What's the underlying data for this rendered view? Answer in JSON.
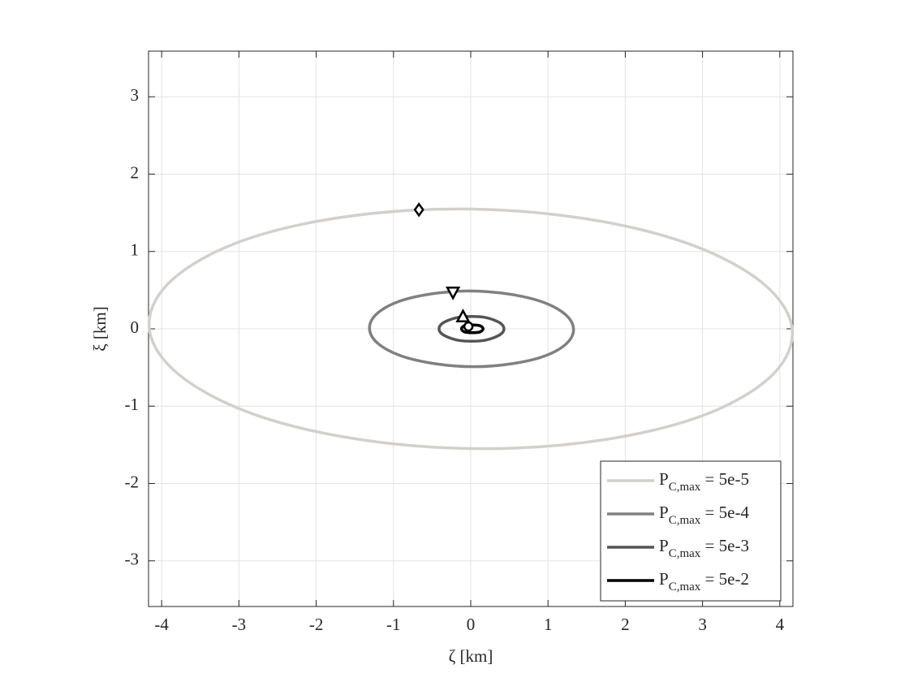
{
  "chart_data": {
    "type": "line",
    "xlabel": "ζ  [km]",
    "ylabel": "ξ  [km]",
    "xlim": [
      -4.17,
      4.17
    ],
    "ylim": [
      -3.59,
      3.59
    ],
    "xticks": [
      -4,
      -3,
      -2,
      -1,
      0,
      1,
      2,
      3,
      4
    ],
    "yticks": [
      -3,
      -2,
      -1,
      0,
      1,
      2,
      3
    ],
    "grid": true,
    "legend": "lower right",
    "series": [
      {
        "name": "P_{C,max} = 5e-5",
        "color": "#d3d0cc",
        "x": [
          4.16,
          3.78,
          2.82,
          1.44,
          -0.17,
          -1.75,
          -3.06,
          -3.91,
          -4.16,
          -3.78,
          -2.82,
          -1.44,
          0.17,
          1.75,
          3.06,
          3.91,
          4.16
        ],
        "y": [
          0,
          0.59,
          1.1,
          1.43,
          1.55,
          1.43,
          1.1,
          0.59,
          0,
          -0.59,
          -1.1,
          -1.43,
          -1.55,
          -1.43,
          -1.1,
          -0.59,
          0
        ],
        "marker": "diamond",
        "marker_x": -0.67,
        "marker_y": 1.54
      },
      {
        "name": "P_{C,max} = 5e-4",
        "color": "#808080",
        "x": [
          1.33,
          1.22,
          0.92,
          0.49,
          -0.02,
          -0.52,
          -0.94,
          -1.22,
          -1.31,
          -1.2,
          -0.9,
          -0.47,
          0.04,
          0.54,
          0.96,
          1.24,
          1.33
        ],
        "y": [
          0,
          0.19,
          0.35,
          0.45,
          0.49,
          0.45,
          0.35,
          0.19,
          0,
          -0.19,
          -0.35,
          -0.45,
          -0.49,
          -0.45,
          -0.35,
          -0.19,
          0
        ],
        "marker": "triangle-down",
        "marker_x": -0.23,
        "marker_y": 0.47
      },
      {
        "name": "P_{C,max} = 5e-3",
        "color": "#555555",
        "x": [
          0.43,
          0.4,
          0.31,
          0.17,
          0.01,
          -0.15,
          -0.29,
          -0.38,
          -0.41,
          -0.38,
          -0.29,
          -0.15,
          0.01,
          0.17,
          0.31,
          0.4,
          0.43
        ],
        "y": [
          0,
          0.06,
          0.11,
          0.15,
          0.16,
          0.15,
          0.11,
          0.06,
          0,
          -0.06,
          -0.11,
          -0.15,
          -0.16,
          -0.15,
          -0.11,
          -0.06,
          0
        ],
        "marker": "triangle-up",
        "marker_x": -0.1,
        "marker_y": 0.16
      },
      {
        "name": "P_{C,max} = 5e-2",
        "color": "#000000",
        "x": [
          0.16,
          0.12,
          0.02,
          -0.08,
          -0.12,
          -0.08,
          0.02,
          0.12,
          0.16
        ],
        "y": [
          0,
          0.04,
          0.05,
          0.04,
          0,
          -0.04,
          -0.05,
          -0.04,
          0
        ],
        "marker": "circle",
        "marker_x": -0.03,
        "marker_y": 0.03
      }
    ]
  }
}
